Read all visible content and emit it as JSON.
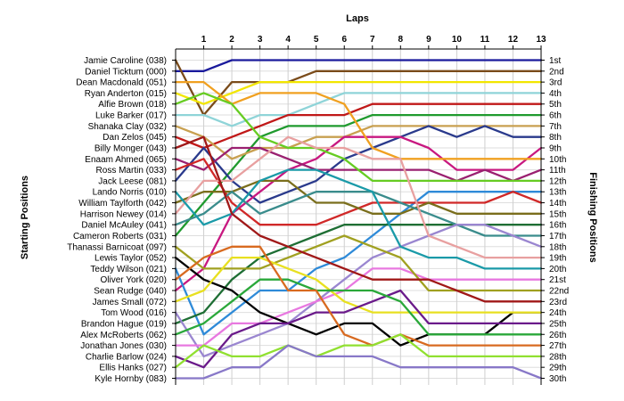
{
  "chart_data": {
    "type": "line",
    "title": "Laps",
    "ylabel_left": "Starting Positions",
    "ylabel_right": "Finishing Positions",
    "x": [
      0,
      1,
      2,
      3,
      4,
      5,
      6,
      7,
      8,
      9,
      10,
      11,
      12,
      13
    ],
    "x_tick_labels": [
      "1",
      "2",
      "3",
      "4",
      "5",
      "6",
      "7",
      "8",
      "9",
      "10",
      "11",
      "12",
      "13"
    ],
    "starting_labels": [
      "Jamie Caroline (038)",
      "Daniel Ticktum (000)",
      "Dean Macdonald (051)",
      "Ryan Anderton (015)",
      "Alfie Brown (018)",
      "Luke Barker (017)",
      "Shanaka Clay (032)",
      "Dan Zelos (045)",
      "Billy Monger (043)",
      "Enaam Ahmed (065)",
      "Ross Martin (033)",
      "Jack Leese (081)",
      "Lando Norris (010)",
      "William Taylforth (042)",
      "Harrison Newey (014)",
      "Daniel McAuley (041)",
      "Cameron Roberts (031)",
      "Thanassi Barnicoat (097)",
      "Lewis Taylor (052)",
      "Teddy Wilson (021)",
      "Oliver York (020)",
      "Sean Rudge (040)",
      "James Small (072)",
      "Tom Wood (016)",
      "Brandon Hague (019)",
      "Alex McRoberts (062)",
      "Jonathan Jones (030)",
      "Charlie Barlow (024)",
      "Ellis Hanks (027)",
      "Kyle Hornby (083)"
    ],
    "finishing_labels": [
      "1st",
      "2nd",
      "3rd",
      "4th",
      "5th",
      "6th",
      "7th",
      "8th",
      "9th",
      "10th",
      "11th",
      "12th",
      "13th",
      "14th",
      "15th",
      "16th",
      "17th",
      "18th",
      "19th",
      "20th",
      "21st",
      "22nd",
      "23rd",
      "24th",
      "25th",
      "26th",
      "27th",
      "28th",
      "29th",
      "30th"
    ],
    "ylim": [
      1,
      30
    ],
    "y_inverted": true,
    "grid": true,
    "legend": "none",
    "series": [
      {
        "color": "#1a1a9c",
        "values": [
          2,
          2,
          1,
          1,
          1,
          1,
          1,
          1,
          1,
          1,
          1,
          1,
          1,
          1
        ]
      },
      {
        "color": "#7a4b1a",
        "values": [
          1,
          6,
          3,
          3,
          3,
          2,
          2,
          2,
          2,
          2,
          2,
          2,
          2,
          2
        ]
      },
      {
        "color": "#f2e600",
        "values": [
          4,
          5,
          4,
          3,
          3,
          3,
          3,
          3,
          3,
          3,
          3,
          3,
          3,
          3
        ]
      },
      {
        "color": "#8fd4d8",
        "values": [
          6,
          6,
          7,
          6,
          6,
          5,
          4,
          4,
          4,
          4,
          4,
          4,
          4,
          4
        ]
      },
      {
        "color": "#c01818",
        "values": [
          8,
          9,
          8,
          7,
          6,
          6,
          6,
          5,
          5,
          5,
          5,
          5,
          5,
          5
        ]
      },
      {
        "color": "#1f9a2e",
        "values": [
          17,
          14,
          11,
          8,
          7,
          7,
          7,
          6,
          6,
          6,
          6,
          6,
          6,
          6
        ]
      },
      {
        "color": "#c8a050",
        "values": [
          7,
          8,
          10,
          9,
          9,
          8,
          8,
          7,
          7,
          7,
          7,
          7,
          7,
          7
        ]
      },
      {
        "color": "#2a3a8c",
        "values": [
          12,
          9,
          12,
          14,
          13,
          12,
          10,
          9,
          8,
          7,
          8,
          7,
          8,
          8
        ]
      },
      {
        "color": "#c81880",
        "values": [
          22,
          20,
          15,
          13,
          11,
          10,
          8,
          8,
          8,
          9,
          11,
          11,
          11,
          9
        ]
      },
      {
        "color": "#f0a020",
        "values": [
          3,
          3,
          5,
          4,
          4,
          4,
          5,
          9,
          10,
          10,
          10,
          10,
          10,
          10
        ]
      },
      {
        "color": "#9a2070",
        "values": [
          10,
          11,
          9,
          9,
          10,
          11,
          11,
          11,
          11,
          11,
          12,
          11,
          12,
          11
        ]
      },
      {
        "color": "#66cc22",
        "values": [
          5,
          4,
          5,
          8,
          9,
          9,
          10,
          12,
          12,
          12,
          12,
          12,
          12,
          12
        ]
      },
      {
        "color": "#2e8ad8",
        "values": [
          20,
          26,
          24,
          22,
          22,
          20,
          19,
          17,
          15,
          13,
          13,
          13,
          13,
          13
        ]
      },
      {
        "color": "#d02828",
        "values": [
          11,
          10,
          14,
          16,
          16,
          16,
          15,
          14,
          14,
          14,
          14,
          14,
          13,
          14
        ]
      },
      {
        "color": "#7a6e1c",
        "values": [
          14,
          13,
          13,
          12,
          12,
          14,
          14,
          15,
          15,
          14,
          15,
          15,
          15,
          15
        ]
      },
      {
        "color": "#1e6e34",
        "values": [
          25,
          24,
          21,
          19,
          18,
          17,
          16,
          16,
          16,
          16,
          16,
          16,
          16,
          16
        ]
      },
      {
        "color": "#3a8c8c",
        "values": [
          16,
          15,
          13,
          15,
          14,
          13,
          13,
          13,
          14,
          15,
          16,
          17,
          17,
          17
        ]
      },
      {
        "color": "#9a86d0",
        "values": [
          24,
          28,
          27,
          26,
          25,
          23,
          21,
          19,
          18,
          17,
          16,
          16,
          17,
          18
        ]
      },
      {
        "color": "#e8a0a0",
        "values": [
          15,
          12,
          12,
          10,
          8,
          9,
          9,
          10,
          10,
          17,
          18,
          19,
          19,
          19
        ]
      },
      {
        "color": "#1a9aa8",
        "values": [
          13,
          16,
          15,
          12,
          11,
          11,
          12,
          13,
          18,
          19,
          19,
          20,
          20,
          20
        ]
      },
      {
        "color": "#e878e0",
        "values": [
          27,
          27,
          25,
          25,
          24,
          23,
          22,
          20,
          20,
          21,
          21,
          21,
          21,
          21
        ]
      },
      {
        "color": "#a0a020",
        "values": [
          18,
          20,
          20,
          20,
          19,
          18,
          17,
          18,
          19,
          22,
          22,
          22,
          22,
          22
        ]
      },
      {
        "color": "#a01818",
        "values": [
          9,
          8,
          15,
          17,
          18,
          19,
          20,
          21,
          21,
          21,
          22,
          23,
          23,
          23
        ]
      },
      {
        "color": "#000000",
        "values": [
          19,
          21,
          22,
          24,
          25,
          26,
          25,
          25,
          27,
          26,
          26,
          26,
          24,
          24
        ]
      },
      {
        "color": "#e8e020",
        "values": [
          23,
          22,
          19,
          19,
          20,
          21,
          23,
          24,
          24,
          24,
          24,
          24,
          24,
          24
        ]
      },
      {
        "color": "#6a1a8a",
        "values": [
          28,
          29,
          26,
          25,
          25,
          24,
          24,
          23,
          22,
          25,
          25,
          25,
          25,
          25
        ]
      },
      {
        "color": "#2aa83a",
        "values": [
          26,
          25,
          23,
          21,
          21,
          22,
          22,
          22,
          23,
          26,
          26,
          26,
          26,
          26
        ]
      },
      {
        "color": "#d86a20",
        "values": [
          21,
          19,
          18,
          18,
          22,
          22,
          26,
          27,
          26,
          27,
          27,
          27,
          27,
          27
        ]
      },
      {
        "color": "#90e030",
        "values": [
          29,
          27,
          28,
          28,
          27,
          28,
          27,
          27,
          26,
          28,
          28,
          28,
          28,
          28
        ]
      },
      {
        "color": "#8878c8",
        "values": [
          30,
          30,
          29,
          29,
          27,
          28,
          28,
          28,
          29,
          29,
          29,
          29,
          29,
          30
        ]
      }
    ]
  }
}
